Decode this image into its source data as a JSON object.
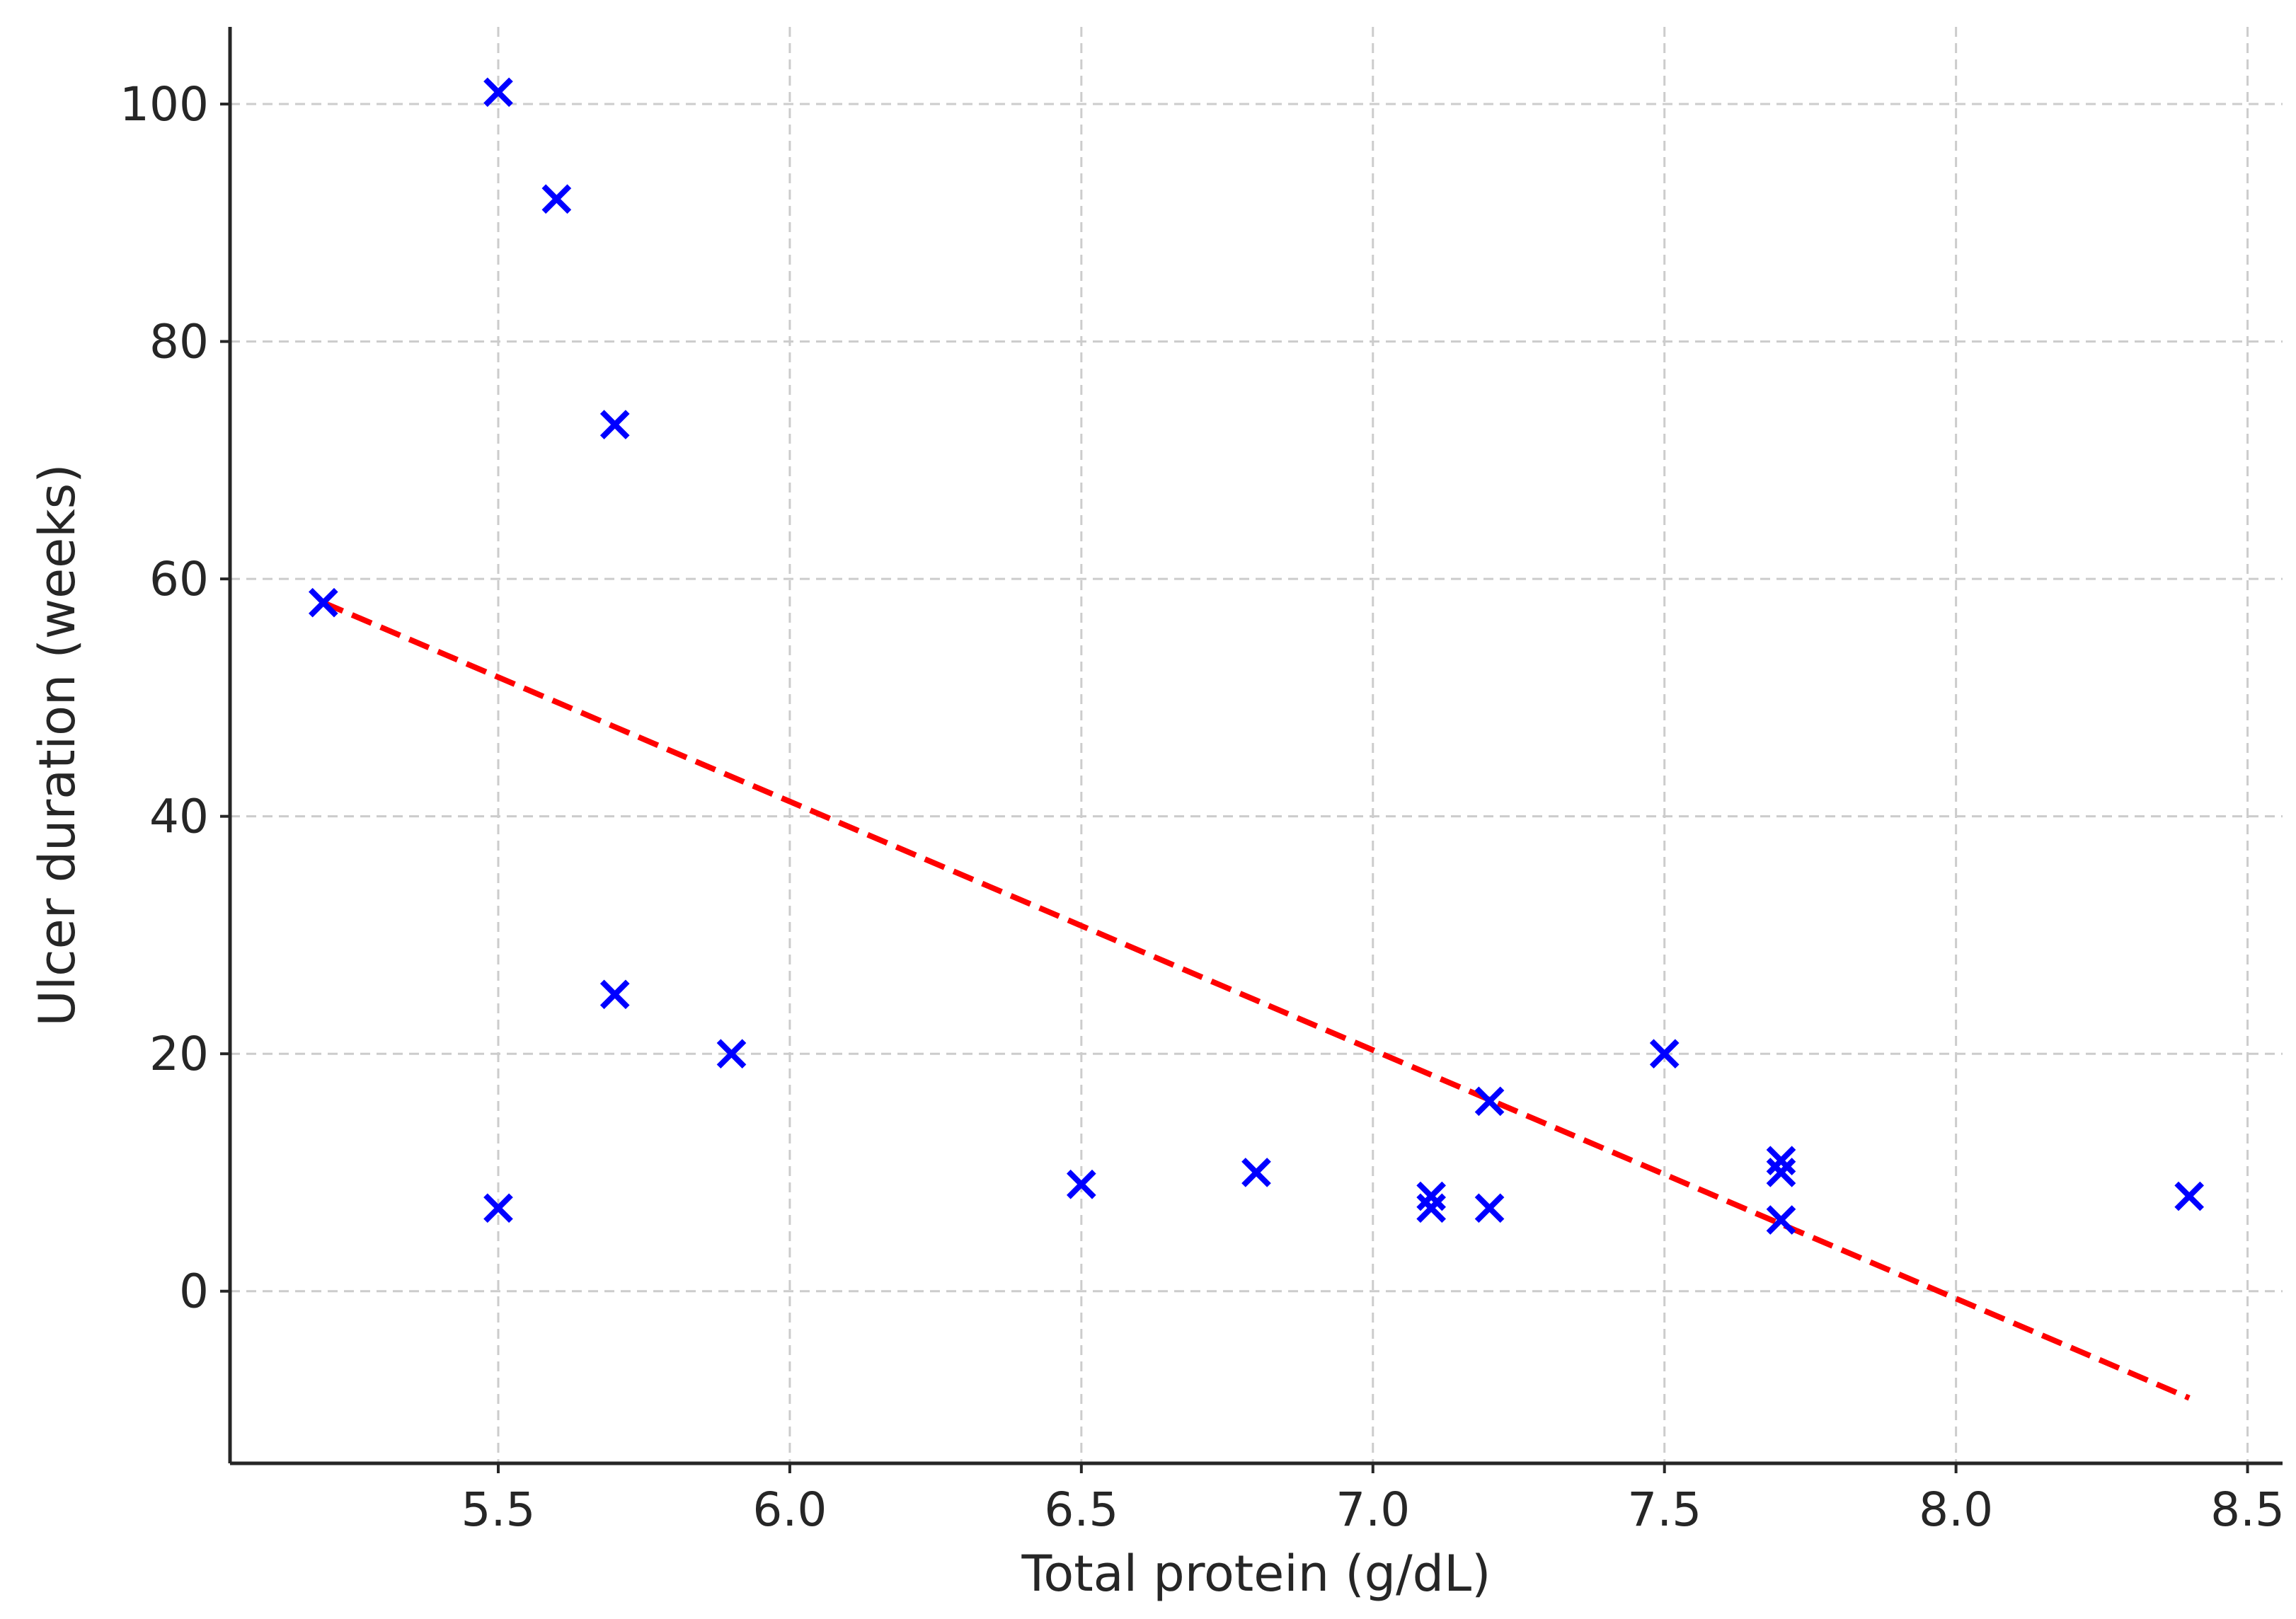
{
  "chart_data": {
    "type": "scatter",
    "title": "",
    "xlabel": "Total protein (g/dL)",
    "ylabel": "Ulcer duration (weeks)",
    "xlim": [
      5.04,
      8.56
    ],
    "ylim": [
      -14.5,
      106.5
    ],
    "xticks": [
      5.5,
      6.0,
      6.5,
      7.0,
      7.5,
      8.0,
      8.5
    ],
    "xtick_labels": [
      "5.5",
      "6.0",
      "6.5",
      "7.0",
      "7.5",
      "8.0",
      "8.5"
    ],
    "yticks": [
      0,
      20,
      40,
      60,
      80,
      100
    ],
    "ytick_labels": [
      "0",
      "20",
      "40",
      "60",
      "80",
      "100"
    ],
    "grid": true,
    "series": [
      {
        "marker": "x",
        "color": "#0000ff",
        "points": [
          {
            "x": 5.2,
            "y": 58
          },
          {
            "x": 5.5,
            "y": 101
          },
          {
            "x": 5.5,
            "y": 7
          },
          {
            "x": 5.6,
            "y": 92
          },
          {
            "x": 5.7,
            "y": 73
          },
          {
            "x": 5.7,
            "y": 25
          },
          {
            "x": 5.9,
            "y": 20
          },
          {
            "x": 6.5,
            "y": 9
          },
          {
            "x": 6.8,
            "y": 10
          },
          {
            "x": 7.1,
            "y": 8
          },
          {
            "x": 7.1,
            "y": 7
          },
          {
            "x": 7.2,
            "y": 16
          },
          {
            "x": 7.2,
            "y": 7
          },
          {
            "x": 7.5,
            "y": 20
          },
          {
            "x": 7.7,
            "y": 11
          },
          {
            "x": 7.7,
            "y": 10
          },
          {
            "x": 7.7,
            "y": 6
          },
          {
            "x": 8.4,
            "y": 8
          }
        ]
      }
    ],
    "trendline": {
      "style": "dashed",
      "color": "#ff0000",
      "x": [
        5.2,
        8.4
      ],
      "y": [
        58,
        -9
      ]
    }
  }
}
